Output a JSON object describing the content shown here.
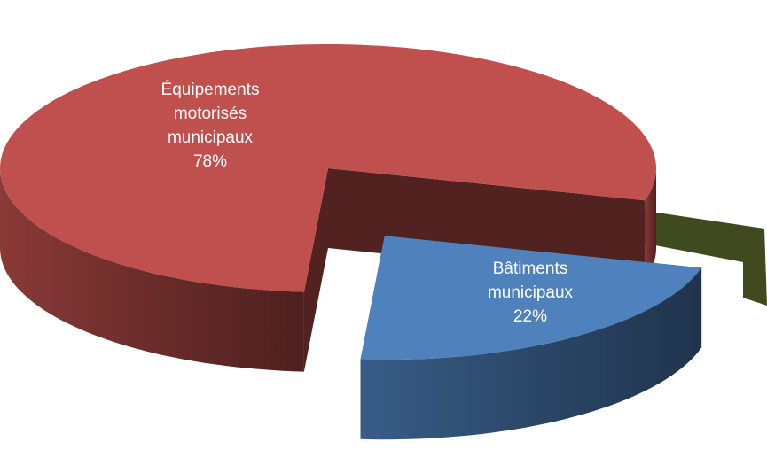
{
  "chart_data": {
    "type": "pie3d",
    "categories": [
      "Équipements motorisés municipaux",
      "Bâtiments municipaux"
    ],
    "values": [
      78,
      22
    ],
    "value_labels": [
      "78%",
      "22%"
    ],
    "colors": [
      "#c0504d",
      "#4f81bd"
    ]
  }
}
